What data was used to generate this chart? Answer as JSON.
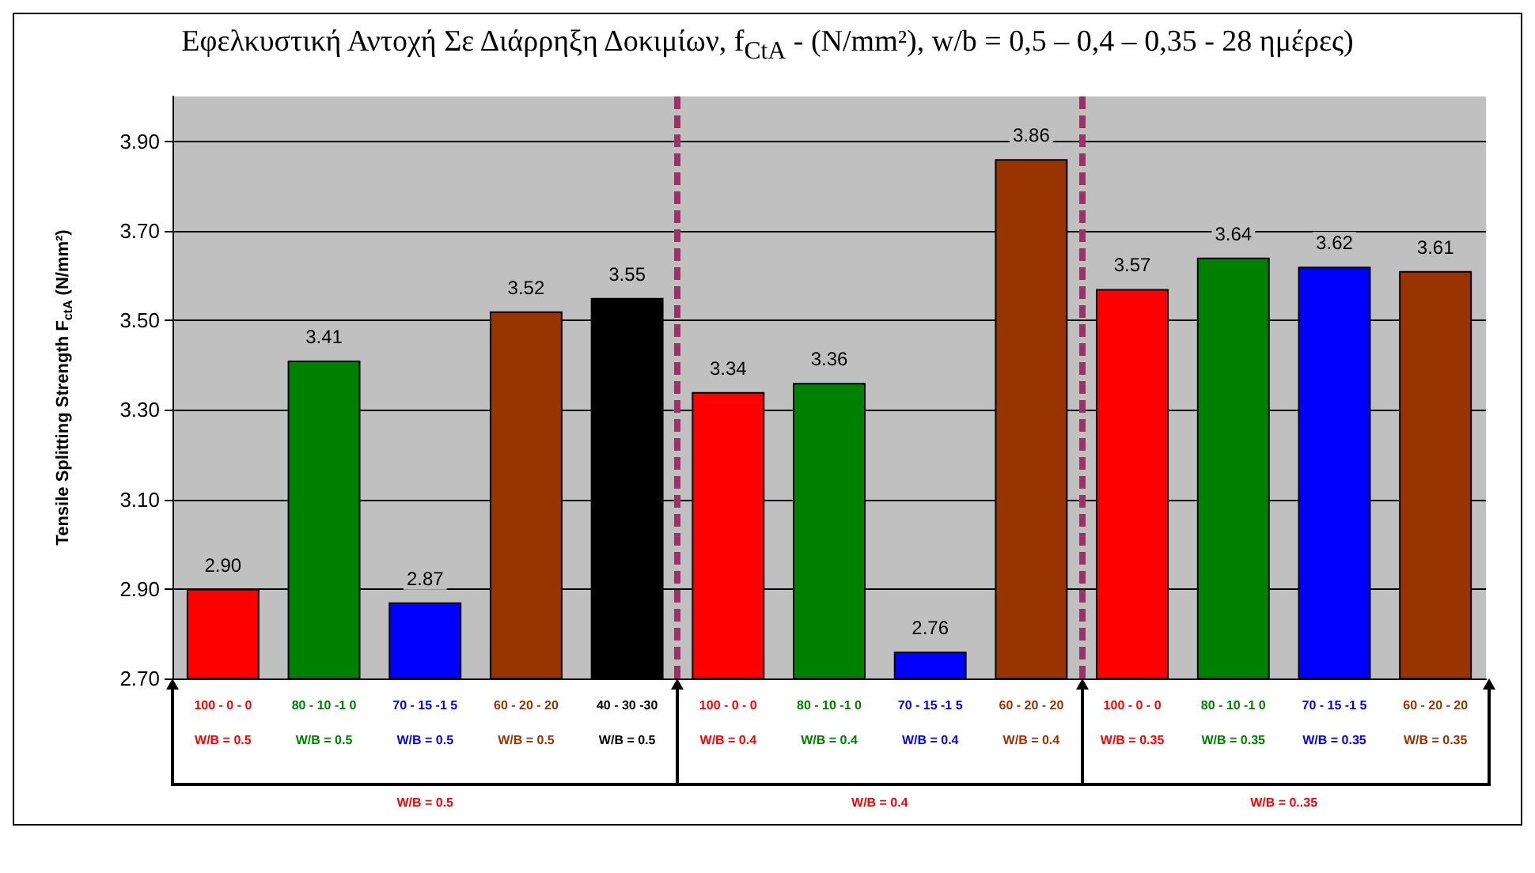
{
  "chart_data": {
    "type": "bar",
    "title": "Εφελκυστική Αντοχή Σε Διάρρηξη Δοκιμίων, f$_{CtA}$ - (N/mm²), w/b = 0,5 – 0,4 – 0,35 - 28 ημέρες)",
    "ylabel": "Tensile Splitting Strength F$_{ctA}$ (N/mm²)",
    "categories": [
      "100 - 0 - 0\nW/B = 0.5",
      "80 - 10 -1 0\nW/B = 0.5",
      "70 - 15 -1 5\nW/B = 0.5",
      "60 - 20 - 20\nW/B = 0.5",
      "40 - 30 -30\nW/B = 0.5",
      "100 - 0 - 0\nW/B = 0.4",
      "80 - 10 -1 0\nW/B = 0.4",
      "70 - 15 -1 5\nW/B = 0.4",
      "60 - 20 - 20\nW/B = 0.4",
      "100 - 0 - 0\nW/B = 0.35",
      "80 - 10 -1 0\nW/B = 0.35",
      "70 - 15 -1 5\nW/B = 0.35",
      "60 - 20 - 20\nW/B = 0.35"
    ],
    "values": [
      2.9,
      3.41,
      2.87,
      3.52,
      3.55,
      3.34,
      3.36,
      2.76,
      3.86,
      3.57,
      3.64,
      3.62,
      3.61
    ],
    "value_labels": [
      "2.90",
      "3.41",
      "2.87",
      "3.52",
      "3.55",
      "3.34",
      "3.36",
      "2.76",
      "3.86",
      "3.57",
      "3.64",
      "3.62",
      "3.61"
    ],
    "colors": [
      "#ff0000",
      "#008000",
      "#0000ff",
      "#993300",
      "#000000",
      "#ff0000",
      "#008000",
      "#0000ff",
      "#993300",
      "#ff0000",
      "#008000",
      "#0000ff",
      "#993300"
    ],
    "ylim": [
      2.7,
      4.0
    ],
    "yticks": [
      {
        "value": 2.7,
        "label": "2.70"
      },
      {
        "value": 2.9,
        "label": "2.90"
      },
      {
        "value": 3.1,
        "label": "3.10"
      },
      {
        "value": 3.3,
        "label": "3.30"
      },
      {
        "value": 3.5,
        "label": "3.50"
      },
      {
        "value": 3.7,
        "label": "3.70"
      },
      {
        "value": 3.9,
        "label": "3.90"
      }
    ],
    "grid": "y",
    "annotations": [
      "W/B = 0.5",
      "W/B = 0.4",
      "W/B = 0..35"
    ]
  }
}
